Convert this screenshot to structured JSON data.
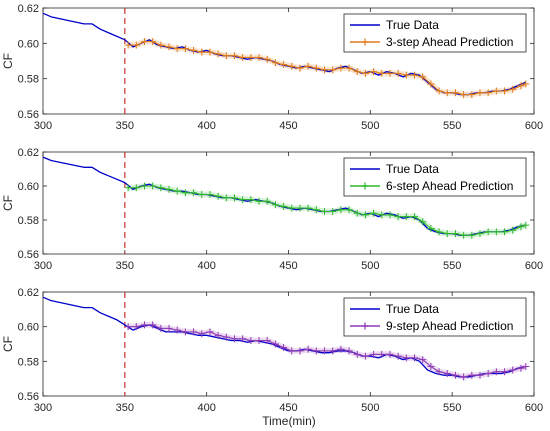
{
  "figure": {
    "xlabel": "Time(min)"
  },
  "colors": {
    "true": "#0000CC",
    "divider": "#CC3333",
    "axis": "#262626"
  },
  "chart_data": [
    {
      "type": "line",
      "title": "",
      "xlabel": "",
      "ylabel": "CF",
      "xlim": [
        300,
        600
      ],
      "ylim": [
        0.56,
        0.62
      ],
      "xticks": [
        300,
        350,
        400,
        450,
        500,
        550,
        600
      ],
      "yticks": [
        0.56,
        0.58,
        0.6,
        0.62
      ],
      "divider_x": 350,
      "legend_position": "top-right",
      "series": [
        {
          "name": "True Data",
          "color": "#0000CC",
          "x": [
            300,
            305,
            310,
            315,
            320,
            325,
            330,
            335,
            340,
            345,
            350,
            355,
            360,
            365,
            370,
            375,
            380,
            385,
            390,
            395,
            400,
            405,
            410,
            415,
            420,
            425,
            430,
            435,
            440,
            445,
            450,
            455,
            460,
            465,
            470,
            475,
            480,
            485,
            490,
            495,
            500,
            505,
            510,
            515,
            520,
            525,
            530,
            535,
            540,
            545,
            550,
            555,
            560,
            565,
            570,
            575,
            580,
            585,
            590,
            595
          ],
          "y": [
            0.617,
            0.615,
            0.614,
            0.613,
            0.612,
            0.611,
            0.611,
            0.608,
            0.606,
            0.604,
            0.602,
            0.598,
            0.6,
            0.602,
            0.599,
            0.598,
            0.597,
            0.598,
            0.596,
            0.595,
            0.596,
            0.594,
            0.593,
            0.593,
            0.592,
            0.591,
            0.592,
            0.591,
            0.59,
            0.588,
            0.587,
            0.586,
            0.587,
            0.586,
            0.585,
            0.584,
            0.586,
            0.587,
            0.585,
            0.583,
            0.584,
            0.582,
            0.584,
            0.583,
            0.581,
            0.583,
            0.582,
            0.578,
            0.574,
            0.572,
            0.572,
            0.571,
            0.571,
            0.572,
            0.572,
            0.573,
            0.573,
            0.574,
            0.576,
            0.578
          ]
        },
        {
          "name": "3-step Ahead Prediction",
          "color": "#E07B1A",
          "marker": "+",
          "x": [
            352,
            357,
            362,
            367,
            372,
            377,
            382,
            387,
            392,
            397,
            402,
            407,
            412,
            417,
            422,
            427,
            432,
            437,
            442,
            447,
            452,
            457,
            462,
            467,
            472,
            477,
            482,
            487,
            492,
            497,
            502,
            507,
            512,
            517,
            522,
            527,
            532,
            537,
            542,
            547,
            552,
            557,
            562,
            567,
            572,
            577,
            582,
            587,
            592,
            595
          ],
          "y": [
            0.599,
            0.599,
            0.601,
            0.601,
            0.599,
            0.598,
            0.597,
            0.597,
            0.596,
            0.595,
            0.595,
            0.594,
            0.593,
            0.593,
            0.592,
            0.592,
            0.592,
            0.591,
            0.589,
            0.588,
            0.587,
            0.586,
            0.587,
            0.586,
            0.585,
            0.585,
            0.586,
            0.586,
            0.584,
            0.583,
            0.584,
            0.583,
            0.583,
            0.583,
            0.582,
            0.582,
            0.581,
            0.577,
            0.573,
            0.572,
            0.572,
            0.571,
            0.571,
            0.572,
            0.572,
            0.573,
            0.573,
            0.574,
            0.576,
            0.577
          ]
        }
      ]
    },
    {
      "type": "line",
      "title": "",
      "xlabel": "",
      "ylabel": "CF",
      "xlim": [
        300,
        600
      ],
      "ylim": [
        0.56,
        0.62
      ],
      "xticks": [
        300,
        350,
        400,
        450,
        500,
        550,
        600
      ],
      "yticks": [
        0.56,
        0.58,
        0.6,
        0.62
      ],
      "divider_x": 350,
      "legend_position": "top-right",
      "series": [
        {
          "name": "True Data",
          "color": "#0000CC",
          "x": [
            300,
            305,
            310,
            315,
            320,
            325,
            330,
            335,
            340,
            345,
            350,
            355,
            360,
            365,
            370,
            375,
            380,
            385,
            390,
            395,
            400,
            405,
            410,
            415,
            420,
            425,
            430,
            435,
            440,
            445,
            450,
            455,
            460,
            465,
            470,
            475,
            480,
            485,
            490,
            495,
            500,
            505,
            510,
            515,
            520,
            525,
            530,
            535,
            540,
            545,
            550,
            555,
            560,
            565,
            570,
            575,
            580,
            585,
            590,
            595
          ],
          "y": [
            0.617,
            0.615,
            0.614,
            0.613,
            0.612,
            0.611,
            0.611,
            0.608,
            0.606,
            0.604,
            0.602,
            0.598,
            0.6,
            0.601,
            0.599,
            0.598,
            0.597,
            0.597,
            0.596,
            0.595,
            0.595,
            0.594,
            0.593,
            0.593,
            0.592,
            0.591,
            0.592,
            0.591,
            0.59,
            0.588,
            0.587,
            0.586,
            0.587,
            0.586,
            0.585,
            0.585,
            0.586,
            0.587,
            0.585,
            0.583,
            0.584,
            0.582,
            0.584,
            0.583,
            0.581,
            0.582,
            0.58,
            0.575,
            0.573,
            0.572,
            0.572,
            0.571,
            0.571,
            0.572,
            0.573,
            0.573,
            0.573,
            0.574,
            0.576,
            0.577
          ]
        },
        {
          "name": "6-step Ahead Prediction",
          "color": "#2EB82E",
          "marker": "+",
          "x": [
            352,
            357,
            362,
            367,
            372,
            377,
            382,
            387,
            392,
            397,
            402,
            407,
            412,
            417,
            422,
            427,
            432,
            437,
            442,
            447,
            452,
            457,
            462,
            467,
            472,
            477,
            482,
            487,
            492,
            497,
            502,
            507,
            512,
            517,
            522,
            527,
            532,
            537,
            542,
            547,
            552,
            557,
            562,
            567,
            572,
            577,
            582,
            587,
            592,
            595
          ],
          "y": [
            0.599,
            0.599,
            0.6,
            0.6,
            0.599,
            0.598,
            0.597,
            0.596,
            0.596,
            0.595,
            0.595,
            0.594,
            0.593,
            0.593,
            0.592,
            0.592,
            0.591,
            0.591,
            0.589,
            0.588,
            0.587,
            0.587,
            0.587,
            0.586,
            0.585,
            0.585,
            0.586,
            0.586,
            0.584,
            0.583,
            0.584,
            0.583,
            0.583,
            0.582,
            0.582,
            0.582,
            0.579,
            0.575,
            0.573,
            0.572,
            0.572,
            0.571,
            0.571,
            0.572,
            0.573,
            0.573,
            0.573,
            0.574,
            0.576,
            0.577
          ]
        }
      ]
    },
    {
      "type": "line",
      "title": "",
      "xlabel": "Time(min)",
      "ylabel": "CF",
      "xlim": [
        300,
        600
      ],
      "ylim": [
        0.56,
        0.62
      ],
      "xticks": [
        300,
        350,
        400,
        450,
        500,
        550,
        600
      ],
      "yticks": [
        0.56,
        0.58,
        0.6,
        0.62
      ],
      "divider_x": 350,
      "legend_position": "top-right",
      "series": [
        {
          "name": "True Data",
          "color": "#0000CC",
          "x": [
            300,
            305,
            310,
            315,
            320,
            325,
            330,
            335,
            340,
            345,
            350,
            355,
            360,
            365,
            370,
            375,
            380,
            385,
            390,
            395,
            400,
            405,
            410,
            415,
            420,
            425,
            430,
            435,
            440,
            445,
            450,
            455,
            460,
            465,
            470,
            475,
            480,
            485,
            490,
            495,
            500,
            505,
            510,
            515,
            520,
            525,
            530,
            535,
            540,
            545,
            550,
            555,
            560,
            565,
            570,
            575,
            580,
            585,
            590,
            595
          ],
          "y": [
            0.617,
            0.615,
            0.614,
            0.613,
            0.612,
            0.611,
            0.611,
            0.608,
            0.606,
            0.604,
            0.601,
            0.598,
            0.6,
            0.601,
            0.599,
            0.597,
            0.597,
            0.597,
            0.596,
            0.595,
            0.595,
            0.594,
            0.593,
            0.592,
            0.592,
            0.591,
            0.592,
            0.591,
            0.59,
            0.588,
            0.586,
            0.586,
            0.587,
            0.586,
            0.585,
            0.585,
            0.586,
            0.586,
            0.585,
            0.583,
            0.583,
            0.582,
            0.584,
            0.583,
            0.581,
            0.582,
            0.58,
            0.575,
            0.573,
            0.572,
            0.572,
            0.571,
            0.571,
            0.572,
            0.573,
            0.573,
            0.573,
            0.574,
            0.576,
            0.577
          ]
        },
        {
          "name": "9-step Ahead Prediction",
          "color": "#8E3BB5",
          "marker": "+",
          "x": [
            352,
            357,
            362,
            367,
            372,
            377,
            382,
            387,
            392,
            397,
            402,
            407,
            412,
            417,
            422,
            427,
            432,
            437,
            442,
            447,
            452,
            457,
            462,
            467,
            472,
            477,
            482,
            487,
            492,
            497,
            502,
            507,
            512,
            517,
            522,
            527,
            532,
            537,
            542,
            547,
            552,
            557,
            562,
            567,
            572,
            577,
            582,
            587,
            592,
            595
          ],
          "y": [
            0.6,
            0.6,
            0.601,
            0.601,
            0.599,
            0.599,
            0.598,
            0.597,
            0.597,
            0.596,
            0.597,
            0.595,
            0.594,
            0.593,
            0.593,
            0.592,
            0.592,
            0.592,
            0.59,
            0.588,
            0.586,
            0.586,
            0.587,
            0.586,
            0.586,
            0.586,
            0.587,
            0.586,
            0.584,
            0.583,
            0.584,
            0.584,
            0.584,
            0.583,
            0.582,
            0.582,
            0.581,
            0.577,
            0.574,
            0.573,
            0.572,
            0.571,
            0.572,
            0.572,
            0.573,
            0.574,
            0.574,
            0.575,
            0.576,
            0.577
          ]
        }
      ]
    }
  ]
}
